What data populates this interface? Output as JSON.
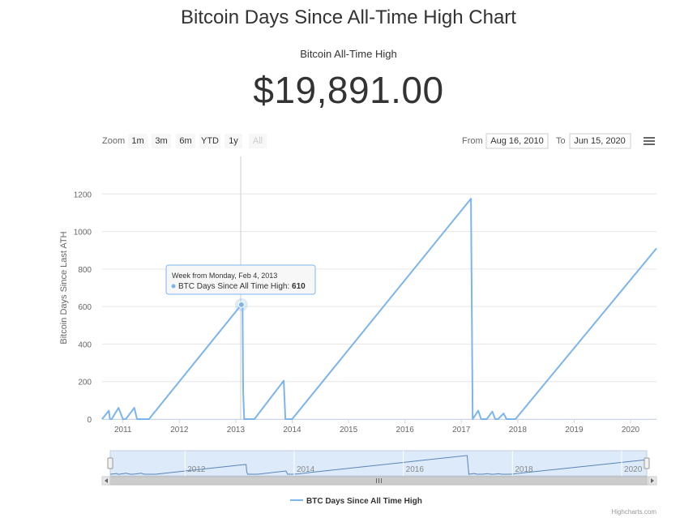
{
  "page": {
    "title": "Bitcoin Days Since All-Time High Chart",
    "ath_label": "Bitcoin All-Time High",
    "ath_value": "$19,891.00"
  },
  "toolbar": {
    "zoom_label": "Zoom",
    "zoom_buttons": [
      "1m",
      "3m",
      "6m",
      "YTD",
      "1y",
      "All"
    ],
    "from_label": "From",
    "from_value": "Aug 16, 2010",
    "to_label": "To",
    "to_value": "Jun 15, 2020",
    "menu_icon": "hamburger-menu-icon"
  },
  "tooltip": {
    "header": "Week from Monday, Feb 4, 2013",
    "series_label": "BTC Days Since All Time High: ",
    "value": "610"
  },
  "navigator": {
    "labels": [
      "2012",
      "2014",
      "2016",
      "2018",
      "2020"
    ]
  },
  "credits": "Highcharts.com",
  "colors": {
    "series": "#7cb5ec",
    "grid": "#e6e6e6",
    "navigator_fill": "#dceaf9"
  },
  "chart_data": {
    "type": "line",
    "title": "",
    "ylabel": "Bitcoin Days Since Last ATH",
    "xlabel": "",
    "ylim": [
      0,
      1400
    ],
    "yticks": [
      0,
      200,
      400,
      600,
      800,
      1000,
      1200
    ],
    "xlim": [
      2010.63,
      2020.46
    ],
    "xticks": [
      2011,
      2012,
      2013,
      2014,
      2015,
      2016,
      2017,
      2018,
      2019,
      2020
    ],
    "grid": true,
    "legend": "bottom",
    "series": [
      {
        "name": "BTC Days Since All Time High",
        "x": [
          2010.63,
          2010.75,
          2010.77,
          2010.8,
          2010.92,
          2011.0,
          2011.02,
          2011.05,
          2011.2,
          2011.25,
          2011.27,
          2011.3,
          2011.42,
          2011.46,
          2013.1,
          2013.12,
          2013.13,
          2013.15,
          2013.18,
          2013.2,
          2013.28,
          2013.3,
          2013.33,
          2013.85,
          2013.88,
          2013.9,
          2013.95,
          2014.0,
          2017.17,
          2017.2,
          2017.3,
          2017.35,
          2017.4,
          2017.45,
          2017.55,
          2017.6,
          2017.65,
          2017.75,
          2017.8,
          2017.85,
          2017.96,
          2020.46
        ],
        "y": [
          0,
          45,
          0,
          0,
          60,
          0,
          0,
          0,
          60,
          0,
          0,
          0,
          0,
          0,
          610,
          600,
          150,
          0,
          0,
          0,
          0,
          0,
          0,
          205,
          0,
          0,
          0,
          0,
          1175,
          0,
          45,
          0,
          0,
          0,
          40,
          0,
          0,
          30,
          0,
          0,
          0,
          910
        ]
      }
    ]
  }
}
